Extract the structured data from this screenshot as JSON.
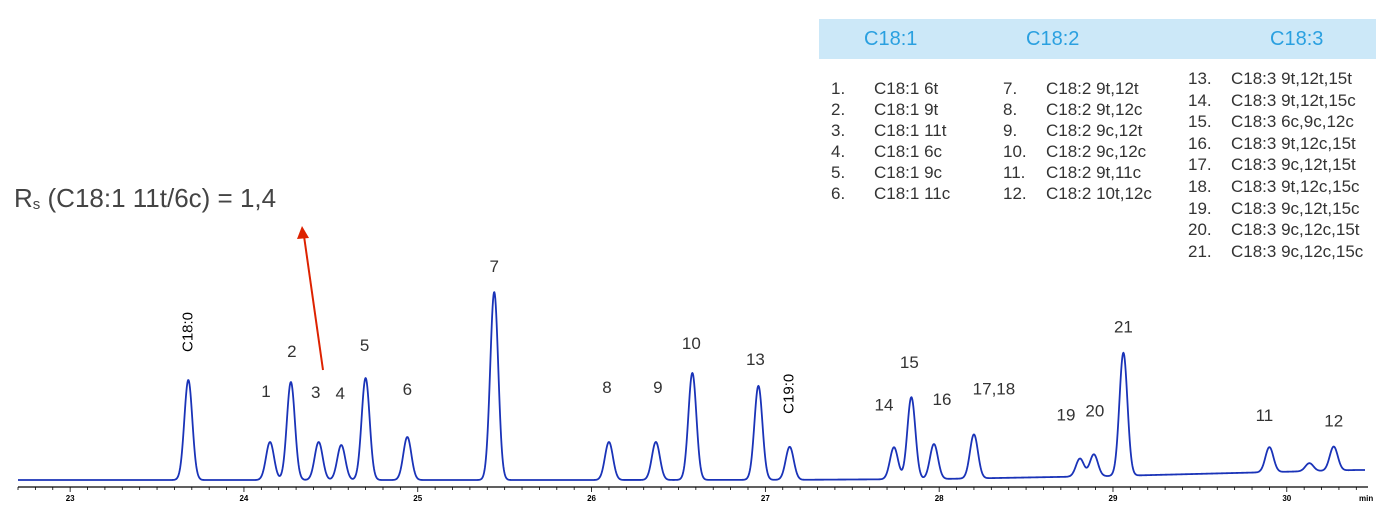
{
  "chart_data": {
    "type": "line",
    "title": "",
    "xlabel": "",
    "ylabel": "",
    "x_unit": "min",
    "xlim": [
      22.7,
      30.45
    ],
    "xticks": [
      23,
      24,
      25,
      26,
      27,
      28,
      29,
      30
    ],
    "grid": false,
    "legend_placement": "top-right",
    "baseline": [
      [
        22.7,
        0.0
      ],
      [
        26.0,
        0.0
      ],
      [
        27.2,
        0.2
      ],
      [
        28.0,
        1.0
      ],
      [
        29.0,
        4.0
      ],
      [
        30.4,
        10.0
      ]
    ],
    "peaks": [
      {
        "label": "C18:0",
        "x": 23.68,
        "height": 100
      },
      {
        "label": "1",
        "x": 24.15,
        "height": 38
      },
      {
        "label": "2",
        "x": 24.27,
        "height": 98
      },
      {
        "label": "3",
        "x": 24.43,
        "height": 38
      },
      {
        "label": "4",
        "x": 24.56,
        "height": 35
      },
      {
        "label": "5",
        "x": 24.7,
        "height": 102
      },
      {
        "label": "6",
        "x": 24.94,
        "height": 43
      },
      {
        "label": "7",
        "x": 25.44,
        "height": 188
      },
      {
        "label": "8",
        "x": 26.1,
        "height": 38
      },
      {
        "label": "9",
        "x": 26.37,
        "height": 38
      },
      {
        "label": "10",
        "x": 26.58,
        "height": 107
      },
      {
        "label": "13",
        "x": 26.96,
        "height": 94
      },
      {
        "label": "C19:0",
        "x": 27.14,
        "height": 33
      },
      {
        "label": "14",
        "x": 27.74,
        "height": 32
      },
      {
        "label": "15",
        "x": 27.84,
        "height": 82
      },
      {
        "label": "16",
        "x": 27.97,
        "height": 35
      },
      {
        "label": "17,18",
        "x": 28.2,
        "height": 44
      },
      {
        "label": "19",
        "x": 28.81,
        "height": 18
      },
      {
        "label": "20",
        "x": 28.89,
        "height": 22
      },
      {
        "label": "21",
        "x": 29.06,
        "height": 123
      },
      {
        "label": "11",
        "x": 29.9,
        "height": 25
      },
      {
        "label": "",
        "x": 30.13,
        "height": 8
      },
      {
        "label": "12",
        "x": 30.27,
        "height": 24
      }
    ],
    "annotation": {
      "prefix": "R",
      "subscript": "s",
      "text": " (C18:1 11t/6c) = 1,4",
      "arrow_color": "#dd2200",
      "points_to": "3"
    },
    "legend": {
      "headers": [
        "C18:1",
        "C18:2",
        "C18:3"
      ],
      "col1": [
        {
          "num": "1.",
          "name": "C18:1 6t"
        },
        {
          "num": "2.",
          "name": "C18:1 9t"
        },
        {
          "num": "3.",
          "name": "C18:1 11t"
        },
        {
          "num": "4.",
          "name": "C18:1 6c"
        },
        {
          "num": "5.",
          "name": "C18:1 9c"
        },
        {
          "num": "6.",
          "name": "C18:1 11c"
        }
      ],
      "col2": [
        {
          "num": "7.",
          "name": "C18:2 9t,12t"
        },
        {
          "num": "8.",
          "name": "C18:2 9t,12c"
        },
        {
          "num": "9.",
          "name": "C18:2 9c,12t"
        },
        {
          "num": "10.",
          "name": "C18:2 9c,12c"
        },
        {
          "num": "11.",
          "name": "C18:2 9t,11c"
        },
        {
          "num": "12.",
          "name": "C18:2 10t,12c"
        }
      ],
      "col3": [
        {
          "num": "13.",
          "name": "C18:3 9t,12t,15t"
        },
        {
          "num": "14.",
          "name": "C18:3 9t,12t,15c"
        },
        {
          "num": "15.",
          "name": "C18:3 6c,9c,12c"
        },
        {
          "num": "16.",
          "name": "C18:3 9t,12c,15t"
        },
        {
          "num": "17.",
          "name": "C18:3 9c,12t,15t"
        },
        {
          "num": "18.",
          "name": "C18:3 9t,12c,15c"
        },
        {
          "num": "19.",
          "name": "C18:3 9c,12t,15c"
        },
        {
          "num": "20.",
          "name": "C18:3 9c,12c,15t"
        },
        {
          "num": "21.",
          "name": "C18:3 9c,12c,15c"
        }
      ]
    },
    "colors": {
      "trace": "#1a33b8",
      "header_bg": "#cce8f8",
      "header_text": "#2aa0e0",
      "arrow": "#dd2200"
    }
  }
}
